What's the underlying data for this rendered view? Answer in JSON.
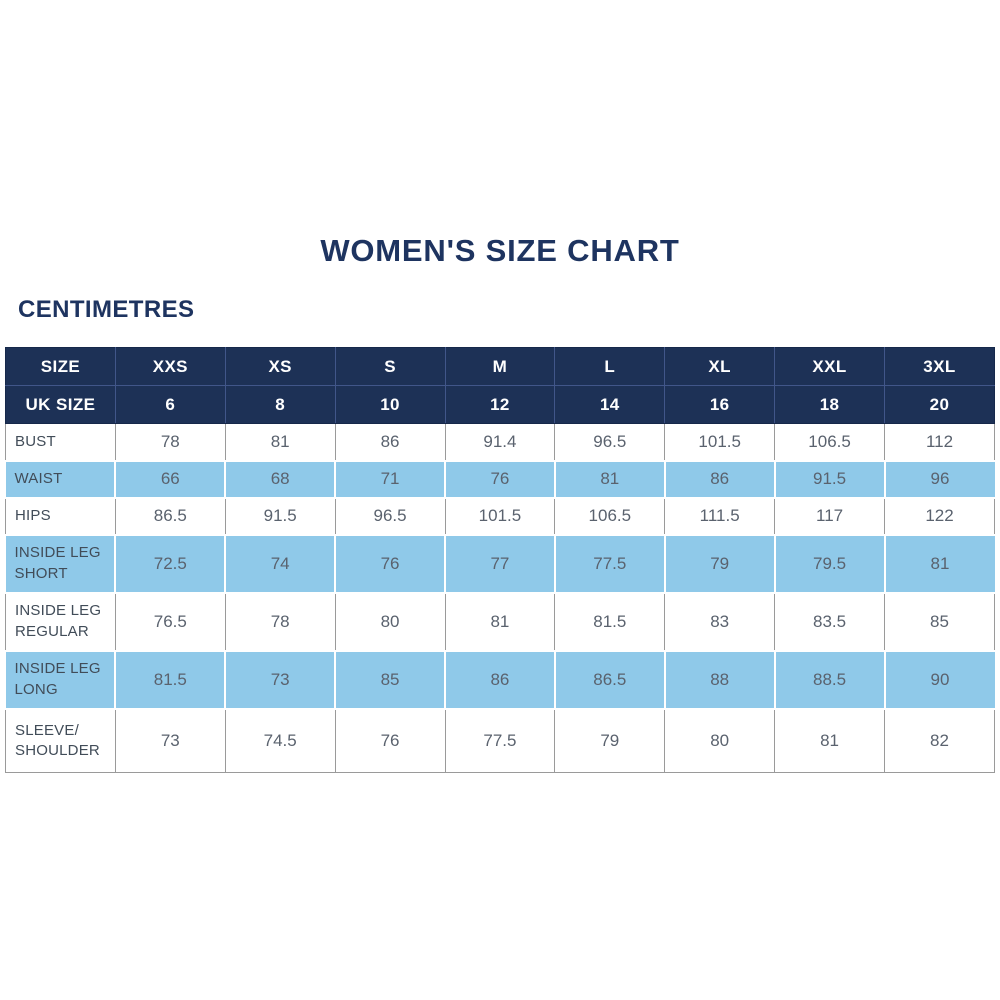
{
  "title": "WOMEN'S SIZE CHART",
  "subtitle": "CENTIMETRES",
  "colors": {
    "navy": "#1d3156",
    "navy_border": "#415689",
    "light_blue": "#8fc9e9",
    "border_gray": "#9a9a9a",
    "title_navy": "#1e3460",
    "label_text": "#414c58",
    "value_text": "#5a626e",
    "header_text": "#ffffff"
  },
  "chart_data": {
    "type": "table",
    "title": "WOMEN'S SIZE CHART",
    "subtitle": "CENTIMETRES",
    "header_rows": [
      {
        "label": "SIZE",
        "values": [
          "XXS",
          "XS",
          "S",
          "M",
          "L",
          "XL",
          "XXL",
          "3XL"
        ]
      },
      {
        "label": "UK SIZE",
        "values": [
          "6",
          "8",
          "10",
          "12",
          "14",
          "16",
          "18",
          "20"
        ]
      }
    ],
    "body_rows": [
      {
        "label": "BUST",
        "values": [
          "78",
          "81",
          "86",
          "91.4",
          "96.5",
          "101.5",
          "106.5",
          "112"
        ]
      },
      {
        "label": "WAIST",
        "values": [
          "66",
          "68",
          "71",
          "76",
          "81",
          "86",
          "91.5",
          "96"
        ]
      },
      {
        "label": "HIPS",
        "values": [
          "86.5",
          "91.5",
          "96.5",
          "101.5",
          "106.5",
          "111.5",
          "117",
          "122"
        ]
      },
      {
        "label": "INSIDE LEG SHORT",
        "values": [
          "72.5",
          "74",
          "76",
          "77",
          "77.5",
          "79",
          "79.5",
          "81"
        ]
      },
      {
        "label": "INSIDE LEG REGULAR",
        "values": [
          "76.5",
          "78",
          "80",
          "81",
          "81.5",
          "83",
          "83.5",
          "85"
        ]
      },
      {
        "label": "INSIDE LEG LONG",
        "values": [
          "81.5",
          "73",
          "85",
          "86",
          "86.5",
          "88",
          "88.5",
          "90"
        ]
      },
      {
        "label": "SLEEVE/ SHOULDER",
        "values": [
          "73",
          "74.5",
          "76",
          "77.5",
          "79",
          "80",
          "81",
          "82"
        ]
      }
    ],
    "row_striping": [
      "white",
      "blue",
      "white",
      "blue",
      "white",
      "blue",
      "white"
    ],
    "units": "centimetres",
    "layout": {
      "columns": 9,
      "striped": true,
      "header_style": "navy"
    }
  }
}
